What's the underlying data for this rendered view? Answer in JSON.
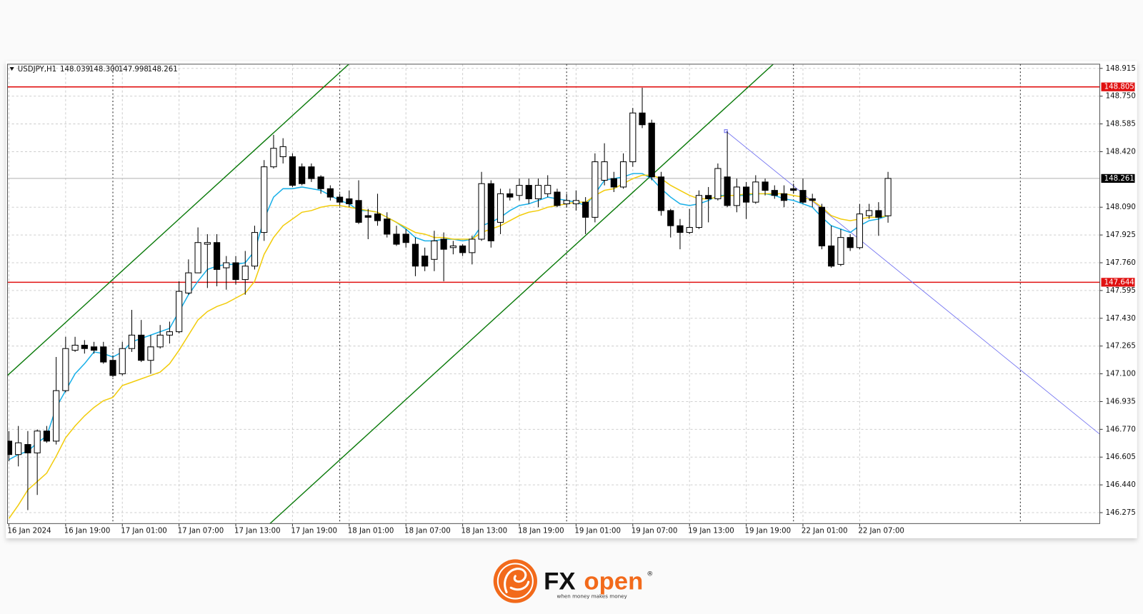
{
  "chart_data": {
    "type": "candlestick",
    "symbol": "USDJPY,H1",
    "header_quotes": [
      "148.039",
      "148.300",
      "147.998",
      "148.261"
    ],
    "categories": [
      "16 Jan 2024",
      null,
      null,
      null,
      null,
      null,
      "16 Jan 19:00",
      null,
      null,
      null,
      null,
      null,
      "17 Jan 01:00",
      null,
      null,
      null,
      null,
      null,
      "17 Jan 07:00",
      null,
      null,
      null,
      null,
      null,
      "17 Jan 13:00",
      null,
      null,
      null,
      null,
      null,
      "17 Jan 19:00",
      null,
      null,
      null,
      null,
      null,
      "18 Jan 01:00",
      null,
      null,
      null,
      null,
      null,
      "18 Jan 07:00",
      null,
      null,
      null,
      null,
      null,
      "18 Jan 13:00",
      null,
      null,
      null,
      null,
      null,
      "18 Jan 19:00",
      null,
      null,
      null,
      null,
      null,
      "19 Jan 01:00",
      null,
      null,
      null,
      null,
      null,
      "19 Jan 07:00",
      null,
      null,
      null,
      null,
      null,
      "19 Jan 13:00",
      null,
      null,
      null,
      null,
      null,
      "19 Jan 19:00",
      null,
      null,
      null,
      null,
      null,
      "22 Jan 01:00",
      null,
      null,
      null,
      null,
      null,
      "22 Jan 07:00",
      null,
      null,
      null
    ],
    "open": [
      146.7,
      146.62,
      146.68,
      146.63,
      146.76,
      146.7,
      147.0,
      147.24,
      147.27,
      147.26,
      147.26,
      147.18,
      147.1,
      147.25,
      147.33,
      147.18,
      147.26,
      147.33,
      147.35,
      147.58,
      147.7,
      147.87,
      147.88,
      147.73,
      147.76,
      147.66,
      147.74,
      147.94,
      148.33,
      148.39,
      148.39,
      148.33,
      148.33,
      148.27,
      148.2,
      148.15,
      148.14,
      148.13,
      148.04,
      148.05,
      148.02,
      147.93,
      147.93,
      147.87,
      147.8,
      147.78,
      147.9,
      147.85,
      147.86,
      147.82,
      147.9,
      148.23,
      148.0,
      148.17,
      148.16,
      148.22,
      148.14,
      148.17,
      148.18,
      148.11,
      148.11,
      148.12,
      148.03,
      148.25,
      148.26,
      148.21,
      148.36,
      148.65,
      148.59,
      148.27,
      148.07,
      147.98,
      147.94,
      147.97,
      148.16,
      148.14,
      148.27,
      148.1,
      148.21,
      148.12,
      148.24,
      148.19,
      148.17,
      148.2,
      148.19,
      148.14,
      148.09,
      147.86,
      147.75,
      147.91,
      147.85,
      148.04,
      148.07,
      148.039
    ],
    "high": [
      146.76,
      146.79,
      146.76,
      146.77,
      146.79,
      147.2,
      147.32,
      147.32,
      147.3,
      147.29,
      147.29,
      147.21,
      147.29,
      147.48,
      147.42,
      147.33,
      147.39,
      147.41,
      147.65,
      147.78,
      147.97,
      147.93,
      147.93,
      147.8,
      147.8,
      147.83,
      147.98,
      148.37,
      148.52,
      148.5,
      148.41,
      148.35,
      148.35,
      148.28,
      148.22,
      148.17,
      148.19,
      148.25,
      148.08,
      148.17,
      148.06,
      147.98,
      147.96,
      147.91,
      147.85,
      147.95,
      147.94,
      147.89,
      147.87,
      147.92,
      148.3,
      148.25,
      148.2,
      148.2,
      148.26,
      148.26,
      148.26,
      148.28,
      148.2,
      148.17,
      148.19,
      148.15,
      148.41,
      148.47,
      148.3,
      148.41,
      148.68,
      148.8,
      148.61,
      148.3,
      148.08,
      148.02,
      148.08,
      148.19,
      148.21,
      148.35,
      148.54,
      148.26,
      148.24,
      148.28,
      148.26,
      148.22,
      148.22,
      148.23,
      148.26,
      148.17,
      148.11,
      147.98,
      147.96,
      147.93,
      148.11,
      148.11,
      148.12,
      148.3
    ],
    "low": [
      146.58,
      146.55,
      146.29,
      146.38,
      146.69,
      146.68,
      146.99,
      147.23,
      147.22,
      147.22,
      147.16,
      147.08,
      147.09,
      147.23,
      147.17,
      147.1,
      147.25,
      147.28,
      147.34,
      147.57,
      147.7,
      147.61,
      147.62,
      147.6,
      147.63,
      147.57,
      147.72,
      147.89,
      148.32,
      148.35,
      148.21,
      148.22,
      148.24,
      148.17,
      148.13,
      148.1,
      148.09,
      147.99,
      147.9,
      147.98,
      147.91,
      147.86,
      147.85,
      147.68,
      147.71,
      147.71,
      147.65,
      147.81,
      147.8,
      147.75,
      147.89,
      147.85,
      147.93,
      148.13,
      148.13,
      148.11,
      148.09,
      148.15,
      148.09,
      148.09,
      148.07,
      147.93,
      148.0,
      148.22,
      148.18,
      148.2,
      148.33,
      148.56,
      148.25,
      148.04,
      147.91,
      147.84,
      147.93,
      147.96,
      148.0,
      148.13,
      148.09,
      148.06,
      148.02,
      148.11,
      148.16,
      148.14,
      148.09,
      148.17,
      148.11,
      148.09,
      147.84,
      147.73,
      147.74,
      147.83,
      147.84,
      148.02,
      147.92,
      147.998
    ],
    "close": [
      146.62,
      146.69,
      146.63,
      146.76,
      146.7,
      147.0,
      147.25,
      147.27,
      147.25,
      147.24,
      147.17,
      147.09,
      147.25,
      147.33,
      147.18,
      147.26,
      147.33,
      147.35,
      147.59,
      147.7,
      147.88,
      147.88,
      147.72,
      147.76,
      147.66,
      147.74,
      147.94,
      148.33,
      148.44,
      148.45,
      148.22,
      148.23,
      148.26,
      148.2,
      148.15,
      148.12,
      148.11,
      148.0,
      148.03,
      148.01,
      147.93,
      147.87,
      147.88,
      147.74,
      147.74,
      147.89,
      147.84,
      147.86,
      147.82,
      147.9,
      148.23,
      147.89,
      148.17,
      148.15,
      148.22,
      148.14,
      148.22,
      148.22,
      148.1,
      148.13,
      148.13,
      148.03,
      148.36,
      148.36,
      148.21,
      148.36,
      148.65,
      148.58,
      148.27,
      148.07,
      147.98,
      147.94,
      147.97,
      148.16,
      148.14,
      148.32,
      148.1,
      148.21,
      148.12,
      148.24,
      148.19,
      148.16,
      148.13,
      148.19,
      148.12,
      148.13,
      147.86,
      147.74,
      147.91,
      147.85,
      148.05,
      148.07,
      148.03,
      148.261
    ],
    "up_color": "#ffffff",
    "down_color": "#000000",
    "series": [
      {
        "color": "#1ab0e8",
        "values": [
          146.59,
          146.62,
          146.64,
          146.69,
          146.73,
          146.9,
          147.0,
          147.1,
          147.16,
          147.23,
          147.22,
          147.2,
          147.23,
          147.29,
          147.31,
          147.33,
          147.35,
          147.37,
          147.47,
          147.57,
          147.65,
          147.72,
          147.74,
          147.75,
          147.75,
          147.76,
          147.83,
          148.02,
          148.15,
          148.2,
          148.2,
          148.21,
          148.2,
          148.19,
          148.16,
          148.13,
          148.11,
          148.07,
          148.07,
          148.06,
          148.03,
          148.0,
          147.96,
          147.91,
          147.89,
          147.89,
          147.9,
          147.9,
          147.89,
          147.9,
          147.98,
          148.0,
          148.03,
          148.07,
          148.1,
          148.11,
          148.13,
          148.15,
          148.14,
          148.13,
          148.12,
          148.1,
          148.17,
          148.25,
          148.26,
          148.27,
          148.29,
          148.29,
          148.26,
          148.2,
          148.15,
          148.11,
          148.1,
          148.11,
          148.13,
          148.16,
          148.16,
          148.16,
          148.16,
          148.17,
          148.17,
          148.16,
          148.14,
          148.13,
          148.11,
          148.09,
          148.03,
          147.98,
          147.96,
          147.94,
          147.98,
          148.01,
          148.02,
          148.04
        ]
      },
      {
        "color": "#f2cc0c",
        "values": [
          146.24,
          146.32,
          146.41,
          146.46,
          146.51,
          146.61,
          146.72,
          146.79,
          146.85,
          146.9,
          146.94,
          146.96,
          147.03,
          147.05,
          147.07,
          147.09,
          147.11,
          147.16,
          147.24,
          147.33,
          147.42,
          147.47,
          147.5,
          147.52,
          147.55,
          147.58,
          147.65,
          147.81,
          147.91,
          147.98,
          148.02,
          148.06,
          148.07,
          148.09,
          148.1,
          148.1,
          148.09,
          148.08,
          148.07,
          148.06,
          148.03,
          148.0,
          147.97,
          147.94,
          147.93,
          147.91,
          147.91,
          147.9,
          147.9,
          147.9,
          147.94,
          147.96,
          147.98,
          148.01,
          148.04,
          148.06,
          148.07,
          148.09,
          148.1,
          148.11,
          148.12,
          148.12,
          148.16,
          148.19,
          148.2,
          148.23,
          148.26,
          148.28,
          148.28,
          148.26,
          148.22,
          148.19,
          148.16,
          148.14,
          148.14,
          148.15,
          148.16,
          148.16,
          148.17,
          148.17,
          148.17,
          148.17,
          148.17,
          148.16,
          148.15,
          148.13,
          148.09,
          148.04,
          148.02,
          148.01,
          148.02,
          148.03,
          148.03,
          148.04
        ]
      }
    ],
    "levels": [
      {
        "value": 148.805,
        "color": "#e01010"
      },
      {
        "value": 147.644,
        "color": "#e01010"
      }
    ],
    "lines": [
      {
        "color": "#0a7a0a",
        "x": [
          -0.15,
          35.96
        ],
        "y": [
          147.09,
          148.94
        ]
      },
      {
        "color": "#0a7a0a",
        "x": [
          27.62,
          80.86
        ],
        "y": [
          146.21,
          148.94
        ]
      },
      {
        "color": "#6a6af0",
        "x": [
          75.85,
          115.36
        ],
        "y": [
          148.542,
          146.743
        ]
      }
    ],
    "day_separators": [
      11,
      35,
      59,
      83,
      107
    ],
    "xlim": [
      -0.15,
      115.4
    ],
    "ylim": [
      146.21,
      148.94
    ],
    "yticks": [
      148.915,
      {
        "value": 148.75,
        "label": "148.750"
      },
      148.585,
      {
        "value": 148.42,
        "label": "148.420"
      },
      {
        "value": 148.09,
        "label": "148.090"
      },
      147.925,
      {
        "value": 147.76,
        "label": "147.760"
      },
      147.595,
      {
        "value": 147.43,
        "label": "147.430"
      },
      147.265,
      {
        "value": 147.1,
        "label": "147.100"
      },
      146.935,
      {
        "value": 146.77,
        "label": "146.770"
      },
      146.605,
      {
        "value": 146.44,
        "label": "146.440"
      },
      146.275
    ],
    "grid": true
  },
  "logo": {
    "brand_fx": "FX",
    "brand_open": "open",
    "registered": "®",
    "tagline": "when money makes money"
  }
}
